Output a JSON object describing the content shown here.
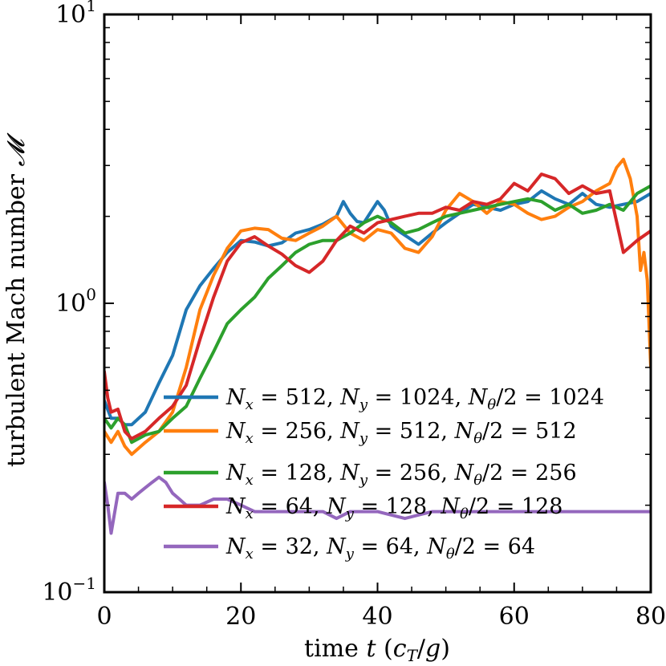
{
  "chart_data": {
    "type": "line",
    "xlabel": "time t (c_T/g)",
    "ylabel": "turbulent Mach number 𝓜",
    "xlim": [
      0,
      80
    ],
    "ylim": [
      0.1,
      10
    ],
    "yscale": "log",
    "x_ticks": [
      "0",
      "20",
      "40",
      "60",
      "80"
    ],
    "y_ticks": [
      {
        "value": 0.1,
        "base": "10",
        "exp": "−1"
      },
      {
        "value": 1,
        "base": "10",
        "exp": "0"
      },
      {
        "value": 10,
        "base": "10",
        "exp": "1"
      }
    ],
    "grid": false,
    "legend_position": "lower-right",
    "series": [
      {
        "name": "Nx = 512, Ny = 1024, Nθ/2 = 1024",
        "color": "#1f77b4",
        "x": [
          0,
          1,
          2,
          3,
          4,
          6,
          8,
          10,
          12,
          14,
          16,
          18,
          20,
          22,
          24,
          26,
          28,
          30,
          32,
          34,
          35,
          36,
          37,
          38,
          40,
          41,
          42,
          44,
          46,
          48,
          50,
          52,
          54,
          56,
          58,
          60,
          62,
          64,
          66,
          68,
          70,
          72,
          74,
          76,
          78,
          80
        ],
        "y": [
          0.46,
          0.4,
          0.4,
          0.38,
          0.38,
          0.42,
          0.53,
          0.66,
          0.95,
          1.15,
          1.32,
          1.5,
          1.65,
          1.63,
          1.58,
          1.62,
          1.75,
          1.8,
          1.88,
          2.0,
          2.25,
          2.05,
          1.92,
          1.9,
          2.25,
          2.1,
          1.85,
          1.72,
          1.6,
          1.75,
          1.9,
          2.05,
          2.2,
          2.15,
          2.1,
          2.2,
          2.25,
          2.45,
          2.3,
          2.2,
          2.4,
          2.2,
          2.15,
          2.2,
          2.25,
          2.4
        ]
      },
      {
        "name": "Nx = 256, Ny = 512, Nθ/2 = 512",
        "color": "#ff7f0e",
        "x": [
          0,
          1,
          2,
          3,
          4,
          6,
          8,
          10,
          12,
          14,
          16,
          18,
          20,
          22,
          24,
          26,
          28,
          30,
          32,
          34,
          36,
          38,
          40,
          42,
          44,
          46,
          48,
          50,
          52,
          54,
          56,
          58,
          60,
          62,
          64,
          66,
          68,
          70,
          72,
          74,
          75,
          76,
          77,
          78,
          78.5,
          79,
          79.5,
          80
        ],
        "y": [
          0.36,
          0.33,
          0.36,
          0.32,
          0.3,
          0.33,
          0.36,
          0.42,
          0.6,
          0.95,
          1.25,
          1.55,
          1.78,
          1.82,
          1.8,
          1.68,
          1.65,
          1.75,
          1.85,
          2.0,
          1.75,
          1.65,
          1.8,
          1.75,
          1.55,
          1.5,
          1.7,
          2.1,
          2.4,
          2.25,
          2.05,
          2.25,
          2.2,
          2.05,
          1.95,
          2.0,
          2.15,
          2.25,
          2.45,
          2.6,
          2.95,
          3.15,
          2.7,
          2.0,
          1.3,
          1.5,
          1.2,
          0.6
        ]
      },
      {
        "name": "Nx = 128, Ny = 256, Nθ/2 = 256",
        "color": "#2ca02c",
        "x": [
          0,
          1,
          2,
          3,
          4,
          6,
          8,
          10,
          12,
          14,
          16,
          18,
          20,
          22,
          24,
          26,
          28,
          30,
          32,
          34,
          36,
          38,
          40,
          42,
          44,
          46,
          48,
          50,
          52,
          54,
          56,
          58,
          60,
          62,
          64,
          66,
          68,
          70,
          72,
          74,
          76,
          78,
          80
        ],
        "y": [
          0.4,
          0.37,
          0.4,
          0.38,
          0.33,
          0.35,
          0.36,
          0.4,
          0.44,
          0.55,
          0.68,
          0.85,
          0.95,
          1.05,
          1.22,
          1.35,
          1.5,
          1.6,
          1.65,
          1.65,
          1.75,
          1.9,
          2.0,
          1.9,
          1.75,
          1.8,
          1.9,
          2.0,
          2.05,
          2.1,
          2.15,
          2.2,
          2.25,
          2.3,
          2.25,
          2.1,
          2.2,
          2.05,
          2.1,
          2.2,
          2.1,
          2.4,
          2.55
        ]
      },
      {
        "name": "Nx = 64, Ny = 128, Nθ/2 = 128",
        "color": "#d62728",
        "x": [
          0,
          0.5,
          1,
          2,
          3,
          4,
          6,
          8,
          10,
          12,
          14,
          16,
          18,
          20,
          22,
          24,
          26,
          28,
          30,
          32,
          34,
          36,
          38,
          40,
          42,
          44,
          46,
          48,
          50,
          52,
          54,
          56,
          58,
          60,
          62,
          64,
          66,
          68,
          70,
          72,
          74,
          76,
          78,
          80
        ],
        "y": [
          0.58,
          0.47,
          0.42,
          0.43,
          0.36,
          0.34,
          0.36,
          0.4,
          0.44,
          0.52,
          0.75,
          1.05,
          1.4,
          1.62,
          1.7,
          1.58,
          1.48,
          1.35,
          1.28,
          1.4,
          1.65,
          1.85,
          1.75,
          1.9,
          1.95,
          2.0,
          2.05,
          2.05,
          2.15,
          2.1,
          2.25,
          2.2,
          2.3,
          2.6,
          2.45,
          2.8,
          2.7,
          2.4,
          2.55,
          2.4,
          2.45,
          1.5,
          1.65,
          1.78
        ]
      },
      {
        "name": "Nx = 32, Ny = 64, Nθ/2 = 64",
        "color": "#9467bd",
        "x": [
          0,
          0.5,
          1,
          2,
          3,
          4,
          5,
          6,
          7,
          8,
          9,
          10,
          11,
          12,
          14,
          16,
          18,
          20,
          22,
          24,
          26,
          28,
          30,
          32,
          34,
          36,
          38,
          40,
          44,
          48,
          52,
          56,
          60,
          64,
          68,
          72,
          76,
          80
        ],
        "y": [
          0.24,
          0.2,
          0.16,
          0.22,
          0.22,
          0.21,
          0.22,
          0.23,
          0.24,
          0.25,
          0.24,
          0.22,
          0.21,
          0.2,
          0.2,
          0.21,
          0.21,
          0.2,
          0.19,
          0.19,
          0.19,
          0.19,
          0.19,
          0.19,
          0.18,
          0.19,
          0.19,
          0.19,
          0.18,
          0.19,
          0.19,
          0.19,
          0.19,
          0.19,
          0.19,
          0.19,
          0.19,
          0.19
        ]
      }
    ]
  },
  "legend": [
    {
      "nx": "512",
      "ny": "1024",
      "nth": "1024"
    },
    {
      "nx": "256",
      "ny": "512",
      "nth": "512"
    },
    {
      "nx": "128",
      "ny": "256",
      "nth": "256"
    },
    {
      "nx": "64",
      "ny": "128",
      "nth": "128"
    },
    {
      "nx": "32",
      "ny": "64",
      "nth": "64"
    }
  ]
}
